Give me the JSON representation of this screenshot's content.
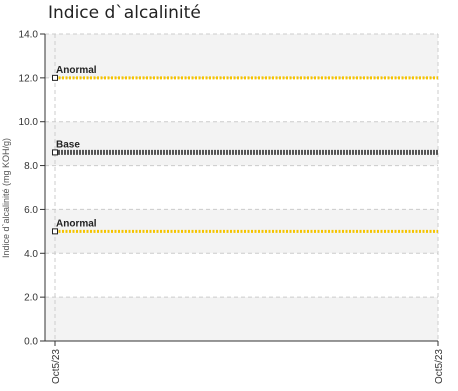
{
  "chart_data": {
    "type": "line",
    "title": "Indice d`alcalinité",
    "ylabel": "Indice d`alcalinité (mg KOH/g)",
    "xlabel": "",
    "x_categories": [
      "Oct5/23",
      "Oct5/23"
    ],
    "ylim": [
      0,
      14
    ],
    "yticks": [
      "0.0",
      "2.0",
      "4.0",
      "6.0",
      "8.0",
      "10.0",
      "12.0",
      "14.0"
    ],
    "grid": true,
    "series": [
      {
        "name": "Anormal",
        "values": [
          12.0,
          12.0
        ],
        "color": "#F5C400",
        "style": "dotted"
      },
      {
        "name": "Base",
        "values": [
          8.6,
          8.6
        ],
        "color": "#555555",
        "style": "dotted-thick"
      },
      {
        "name": "Anormal",
        "values": [
          5.0,
          5.0
        ],
        "color": "#F5C400",
        "style": "dotted"
      }
    ],
    "colors": {
      "band": "#F3F3F3",
      "grid": "#CCCCCC",
      "axis": "#333333",
      "marker_fill": "#ffffff",
      "marker_stroke": "#222222"
    }
  }
}
